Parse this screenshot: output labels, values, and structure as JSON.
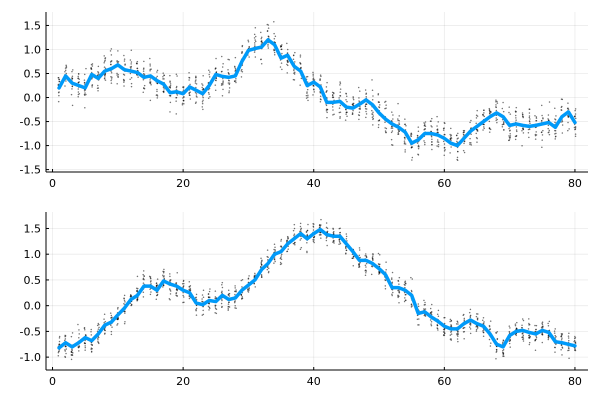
{
  "colors": {
    "series": "#009af9",
    "samples": "#000000",
    "background": "#ffffff"
  },
  "chart_data": [
    {
      "type": "line",
      "xlim": [
        -1,
        82
      ],
      "ylim": [
        -1.55,
        1.78
      ],
      "x_ticks": [
        0,
        20,
        40,
        60,
        80
      ],
      "x_tick_labels": [
        "0",
        "20",
        "40",
        "60",
        "80"
      ],
      "y_ticks": [
        -1.5,
        -1.0,
        -0.5,
        0.0,
        0.5,
        1.0,
        1.5
      ],
      "y_tick_labels": [
        "-1.5",
        "-1.0",
        "-0.5",
        "0.0",
        "0.5",
        "1.0",
        "1.5"
      ],
      "grid": true,
      "legend": "none",
      "scatter_spread": 0.32,
      "x": [
        1,
        2,
        3,
        4,
        5,
        6,
        7,
        8,
        9,
        10,
        11,
        12,
        13,
        14,
        15,
        16,
        17,
        18,
        19,
        20,
        21,
        22,
        23,
        24,
        25,
        26,
        27,
        28,
        29,
        30,
        31,
        32,
        33,
        34,
        35,
        36,
        37,
        38,
        39,
        40,
        41,
        42,
        43,
        44,
        45,
        46,
        47,
        48,
        49,
        50,
        51,
        52,
        53,
        54,
        55,
        56,
        57,
        58,
        59,
        60,
        61,
        62,
        63,
        64,
        65,
        66,
        67,
        68,
        69,
        70,
        71,
        72,
        73,
        74,
        75,
        76,
        77,
        78,
        79,
        80
      ],
      "values": [
        0.2,
        0.45,
        0.3,
        0.25,
        0.2,
        0.48,
        0.4,
        0.55,
        0.6,
        0.68,
        0.58,
        0.55,
        0.52,
        0.42,
        0.45,
        0.35,
        0.28,
        0.1,
        0.12,
        0.08,
        0.22,
        0.15,
        0.08,
        0.25,
        0.48,
        0.44,
        0.42,
        0.45,
        0.75,
        0.98,
        1.02,
        1.05,
        1.2,
        1.1,
        0.82,
        0.88,
        0.65,
        0.55,
        0.25,
        0.32,
        0.22,
        -0.1,
        -0.1,
        -0.08,
        -0.2,
        -0.22,
        -0.14,
        -0.05,
        -0.15,
        -0.32,
        -0.45,
        -0.55,
        -0.62,
        -0.72,
        -0.95,
        -0.88,
        -0.75,
        -0.75,
        -0.78,
        -0.85,
        -0.95,
        -1.0,
        -0.85,
        -0.7,
        -0.6,
        -0.5,
        -0.4,
        -0.32,
        -0.4,
        -0.58,
        -0.55,
        -0.58,
        -0.6,
        -0.58,
        -0.55,
        -0.52,
        -0.62,
        -0.4,
        -0.3,
        -0.52
      ]
    },
    {
      "type": "line",
      "xlim": [
        -1,
        82
      ],
      "ylim": [
        -1.25,
        1.82
      ],
      "x_ticks": [
        0,
        20,
        40,
        60,
        80
      ],
      "x_tick_labels": [
        "0",
        "20",
        "40",
        "60",
        "80"
      ],
      "y_ticks": [
        -1.0,
        -0.5,
        0.0,
        0.5,
        1.0,
        1.5
      ],
      "y_tick_labels": [
        "-1.0",
        "-0.5",
        "0.0",
        "0.5",
        "1.0",
        "1.5"
      ],
      "grid": true,
      "legend": "none",
      "scatter_spread": 0.22,
      "x": [
        1,
        2,
        3,
        4,
        5,
        6,
        7,
        8,
        9,
        10,
        11,
        12,
        13,
        14,
        15,
        16,
        17,
        18,
        19,
        20,
        21,
        22,
        23,
        24,
        25,
        26,
        27,
        28,
        29,
        30,
        31,
        32,
        33,
        34,
        35,
        36,
        37,
        38,
        39,
        40,
        41,
        42,
        43,
        44,
        45,
        46,
        47,
        48,
        49,
        50,
        51,
        52,
        53,
        54,
        55,
        56,
        57,
        58,
        59,
        60,
        61,
        62,
        63,
        64,
        65,
        66,
        67,
        68,
        69,
        70,
        71,
        72,
        73,
        74,
        75,
        76,
        77,
        78,
        79,
        80
      ],
      "values": [
        -0.82,
        -0.72,
        -0.8,
        -0.72,
        -0.62,
        -0.68,
        -0.55,
        -0.38,
        -0.32,
        -0.18,
        -0.05,
        0.12,
        0.2,
        0.38,
        0.38,
        0.3,
        0.48,
        0.42,
        0.38,
        0.3,
        0.25,
        0.05,
        0.02,
        0.1,
        0.08,
        0.2,
        0.12,
        0.15,
        0.3,
        0.4,
        0.5,
        0.7,
        0.82,
        1.0,
        1.05,
        1.2,
        1.3,
        1.4,
        1.3,
        1.4,
        1.48,
        1.38,
        1.35,
        1.35,
        1.2,
        1.05,
        0.88,
        0.88,
        0.82,
        0.72,
        0.6,
        0.35,
        0.35,
        0.3,
        0.2,
        -0.15,
        -0.12,
        -0.22,
        -0.3,
        -0.4,
        -0.45,
        -0.45,
        -0.35,
        -0.28,
        -0.35,
        -0.4,
        -0.55,
        -0.75,
        -0.8,
        -0.58,
        -0.5,
        -0.48,
        -0.52,
        -0.55,
        -0.48,
        -0.52,
        -0.7,
        -0.72,
        -0.75,
        -0.78
      ]
    }
  ]
}
